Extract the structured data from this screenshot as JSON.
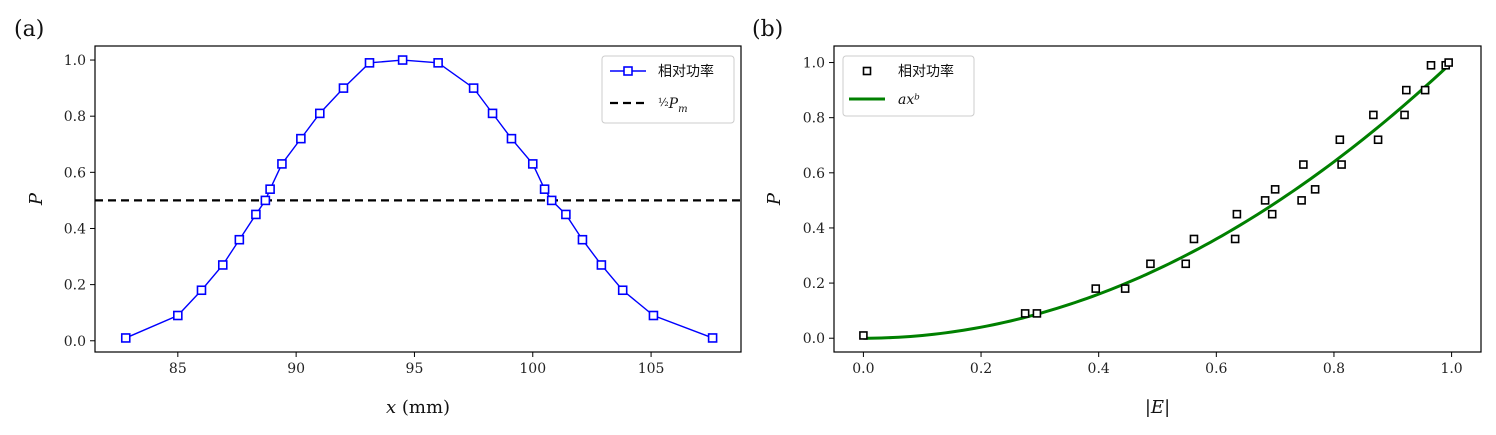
{
  "panels": {
    "a": "(a)",
    "b": "(b)"
  },
  "chart_data": [
    {
      "type": "line",
      "panel": "(a)",
      "xlabel": "x (mm)",
      "ylabel": "P",
      "xlim": [
        81.5,
        108.8
      ],
      "ylim": [
        -0.04,
        1.05
      ],
      "xticks": [
        85,
        90,
        95,
        100,
        105
      ],
      "yticks": [
        0.0,
        0.2,
        0.4,
        0.6,
        0.8,
        1.0
      ],
      "grid": false,
      "legend_position": "top-right",
      "series": [
        {
          "name": "相对功率",
          "color": "#0000ff",
          "marker": "square-open",
          "x": [
            82.8,
            85.0,
            86.0,
            86.9,
            87.6,
            88.3,
            88.7,
            88.9,
            89.4,
            90.2,
            91.0,
            92.0,
            93.1,
            94.5,
            96.0,
            97.5,
            98.3,
            99.1,
            100.0,
            100.5,
            100.8,
            101.4,
            102.1,
            102.9,
            103.8,
            105.1,
            107.6
          ],
          "y": [
            0.01,
            0.09,
            0.18,
            0.27,
            0.36,
            0.45,
            0.5,
            0.54,
            0.63,
            0.72,
            0.81,
            0.9,
            0.99,
            1.0,
            0.99,
            0.9,
            0.81,
            0.72,
            0.63,
            0.54,
            0.5,
            0.45,
            0.36,
            0.27,
            0.18,
            0.09,
            0.01
          ]
        }
      ],
      "hlines": [
        {
          "name": "½Pm",
          "y": 0.5,
          "color": "#000000",
          "style": "dashed"
        }
      ]
    },
    {
      "type": "scatter",
      "panel": "(b)",
      "xlabel": "|E|",
      "ylabel": "P",
      "xlim": [
        -0.05,
        1.05
      ],
      "ylim": [
        -0.05,
        1.06
      ],
      "xticks": [
        0.0,
        0.2,
        0.4,
        0.6,
        0.8,
        1.0
      ],
      "yticks": [
        0.0,
        0.2,
        0.4,
        0.6,
        0.8,
        1.0
      ],
      "grid": false,
      "legend_position": "top-left",
      "series": [
        {
          "name": "相对功率",
          "color": "#000000",
          "marker": "square-open",
          "x": [
            0.0,
            0.275,
            0.295,
            0.395,
            0.445,
            0.488,
            0.548,
            0.562,
            0.632,
            0.635,
            0.683,
            0.695,
            0.7,
            0.745,
            0.748,
            0.768,
            0.81,
            0.813,
            0.867,
            0.875,
            0.92,
            0.923,
            0.955,
            0.965,
            0.99,
            0.995
          ],
          "y": [
            0.01,
            0.09,
            0.09,
            0.18,
            0.18,
            0.27,
            0.27,
            0.36,
            0.36,
            0.45,
            0.5,
            0.45,
            0.54,
            0.5,
            0.63,
            0.54,
            0.72,
            0.63,
            0.81,
            0.72,
            0.81,
            0.9,
            0.9,
            0.99,
            0.99,
            1.0
          ]
        },
        {
          "name": "axᵇ",
          "type": "line",
          "color": "#008000",
          "fit": {
            "a": 1.0,
            "b": 2.0
          },
          "x_range": [
            0.0,
            1.0
          ]
        }
      ]
    }
  ]
}
